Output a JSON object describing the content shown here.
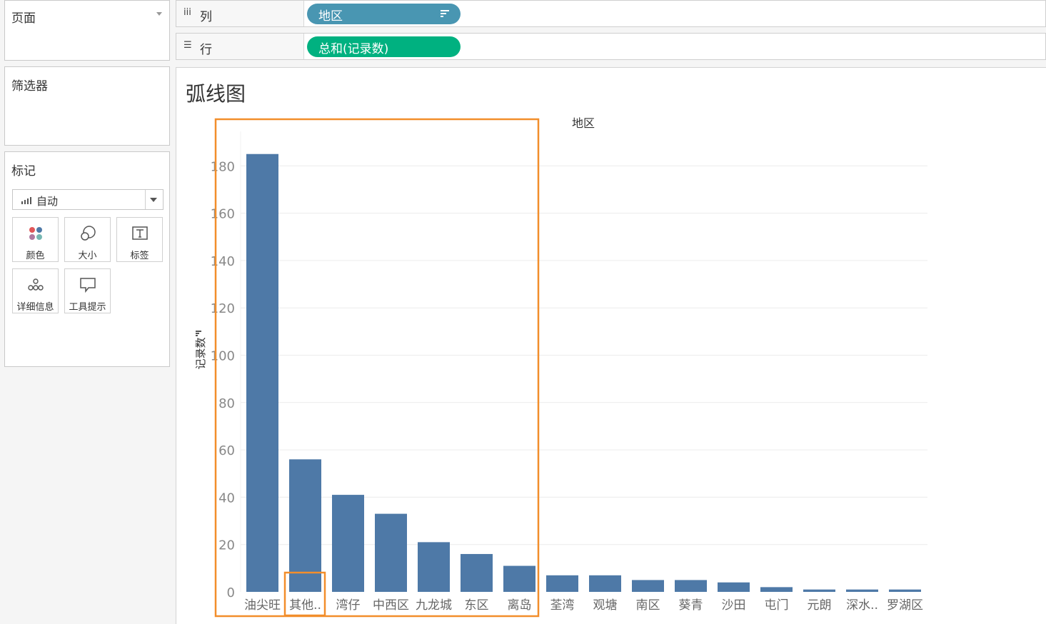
{
  "left_panel": {
    "pages_title": "页面",
    "filters_title": "筛选器",
    "marks_title": "标记",
    "mark_type": "自动",
    "mark_buttons": [
      "颜色",
      "大小",
      "标签",
      "详细信息",
      "工具提示"
    ]
  },
  "shelves": {
    "columns_label": "列",
    "columns_pill": "地区",
    "rows_label": "行",
    "rows_pill": "总和(记录数)"
  },
  "colors": {
    "bar": "#4e79a7",
    "columns_pill": "#4996b2",
    "rows_pill": "#00b180",
    "highlight": "#f28e2b"
  },
  "sheet": {
    "title": "弧线图"
  },
  "chart_data": {
    "type": "bar",
    "title": "弧线图",
    "header_label": "地区",
    "ylabel": "记录数",
    "categories": [
      "油尖旺",
      "其他..",
      "湾仔",
      "中西区",
      "九龙城",
      "东区",
      "离岛",
      "荃湾",
      "观塘",
      "南区",
      "葵青",
      "沙田",
      "屯门",
      "元朗",
      "深水..",
      "罗湖区"
    ],
    "values": [
      185,
      56,
      41,
      33,
      21,
      16,
      11,
      7,
      7,
      5,
      5,
      4,
      2,
      1,
      1,
      1
    ],
    "y_ticks": [
      0,
      20,
      40,
      60,
      80,
      100,
      120,
      140,
      160,
      180
    ],
    "ylim": [
      0,
      195
    ],
    "grid": true,
    "highlight_boxes": [
      {
        "from_category": "油尖旺",
        "to_category": "离岛"
      },
      {
        "from_category": "其他..",
        "to_category": "其他.."
      }
    ]
  }
}
